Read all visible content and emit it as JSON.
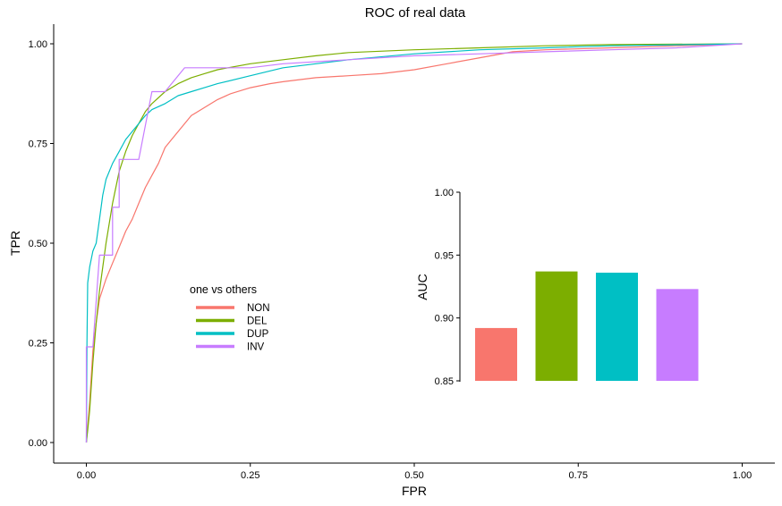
{
  "chart_data": [
    {
      "type": "line",
      "title": "ROC of real data",
      "xlabel": "FPR",
      "ylabel": "TPR",
      "xlim": [
        0,
        1
      ],
      "ylim": [
        0,
        1
      ],
      "xticks": [
        "0.00",
        "0.25",
        "0.50",
        "0.75",
        "1.00"
      ],
      "yticks": [
        "0.00",
        "0.25",
        "0.50",
        "0.75",
        "1.00"
      ],
      "grid": false,
      "legend": {
        "title": "one vs others",
        "placement": "center-left",
        "entries": [
          "NON",
          "DEL",
          "DUP",
          "INV"
        ]
      },
      "series": [
        {
          "name": "NON",
          "color": "#F8766D",
          "points": [
            [
              0,
              0
            ],
            [
              0.002,
              0.04
            ],
            [
              0.005,
              0.1
            ],
            [
              0.01,
              0.23
            ],
            [
              0.015,
              0.3
            ],
            [
              0.02,
              0.36
            ],
            [
              0.03,
              0.41
            ],
            [
              0.04,
              0.45
            ],
            [
              0.05,
              0.49
            ],
            [
              0.06,
              0.53
            ],
            [
              0.07,
              0.56
            ],
            [
              0.08,
              0.6
            ],
            [
              0.09,
              0.64
            ],
            [
              0.1,
              0.67
            ],
            [
              0.11,
              0.7
            ],
            [
              0.12,
              0.74
            ],
            [
              0.13,
              0.76
            ],
            [
              0.14,
              0.78
            ],
            [
              0.15,
              0.8
            ],
            [
              0.16,
              0.82
            ],
            [
              0.18,
              0.84
            ],
            [
              0.2,
              0.86
            ],
            [
              0.22,
              0.875
            ],
            [
              0.25,
              0.89
            ],
            [
              0.28,
              0.9
            ],
            [
              0.3,
              0.905
            ],
            [
              0.35,
              0.915
            ],
            [
              0.4,
              0.92
            ],
            [
              0.45,
              0.925
            ],
            [
              0.5,
              0.935
            ],
            [
              0.55,
              0.95
            ],
            [
              0.6,
              0.965
            ],
            [
              0.65,
              0.98
            ],
            [
              0.7,
              0.985
            ],
            [
              0.8,
              0.99
            ],
            [
              0.9,
              0.995
            ],
            [
              1,
              1
            ]
          ]
        },
        {
          "name": "DEL",
          "color": "#7CAE00",
          "points": [
            [
              0,
              0
            ],
            [
              0.002,
              0.03
            ],
            [
              0.005,
              0.08
            ],
            [
              0.01,
              0.2
            ],
            [
              0.015,
              0.3
            ],
            [
              0.02,
              0.38
            ],
            [
              0.03,
              0.5
            ],
            [
              0.04,
              0.6
            ],
            [
              0.05,
              0.68
            ],
            [
              0.06,
              0.73
            ],
            [
              0.07,
              0.77
            ],
            [
              0.08,
              0.8
            ],
            [
              0.09,
              0.83
            ],
            [
              0.1,
              0.85
            ],
            [
              0.12,
              0.88
            ],
            [
              0.14,
              0.9
            ],
            [
              0.16,
              0.915
            ],
            [
              0.18,
              0.925
            ],
            [
              0.2,
              0.935
            ],
            [
              0.25,
              0.95
            ],
            [
              0.3,
              0.96
            ],
            [
              0.35,
              0.97
            ],
            [
              0.4,
              0.978
            ],
            [
              0.5,
              0.985
            ],
            [
              0.6,
              0.99
            ],
            [
              0.7,
              0.995
            ],
            [
              0.8,
              0.998
            ],
            [
              1,
              1
            ]
          ]
        },
        {
          "name": "DUP",
          "color": "#00BFC4",
          "points": [
            [
              0,
              0
            ],
            [
              0.001,
              0.25
            ],
            [
              0.002,
              0.4
            ],
            [
              0.005,
              0.44
            ],
            [
              0.01,
              0.48
            ],
            [
              0.015,
              0.5
            ],
            [
              0.02,
              0.56
            ],
            [
              0.025,
              0.62
            ],
            [
              0.03,
              0.66
            ],
            [
              0.04,
              0.7
            ],
            [
              0.05,
              0.73
            ],
            [
              0.06,
              0.76
            ],
            [
              0.07,
              0.78
            ],
            [
              0.08,
              0.8
            ],
            [
              0.09,
              0.82
            ],
            [
              0.1,
              0.835
            ],
            [
              0.12,
              0.85
            ],
            [
              0.14,
              0.87
            ],
            [
              0.16,
              0.88
            ],
            [
              0.18,
              0.89
            ],
            [
              0.2,
              0.9
            ],
            [
              0.25,
              0.92
            ],
            [
              0.3,
              0.94
            ],
            [
              0.35,
              0.95
            ],
            [
              0.4,
              0.96
            ],
            [
              0.5,
              0.975
            ],
            [
              0.6,
              0.985
            ],
            [
              0.7,
              0.99
            ],
            [
              0.8,
              0.995
            ],
            [
              1,
              1
            ]
          ]
        },
        {
          "name": "INV",
          "color": "#C77CFF",
          "points": [
            [
              0,
              0
            ],
            [
              0,
              0.24
            ],
            [
              0.01,
              0.24
            ],
            [
              0.02,
              0.47
            ],
            [
              0.04,
              0.47
            ],
            [
              0.04,
              0.59
            ],
            [
              0.05,
              0.59
            ],
            [
              0.05,
              0.71
            ],
            [
              0.06,
              0.71
            ],
            [
              0.07,
              0.71
            ],
            [
              0.08,
              0.71
            ],
            [
              0.1,
              0.88
            ],
            [
              0.12,
              0.88
            ],
            [
              0.15,
              0.94
            ],
            [
              0.2,
              0.94
            ],
            [
              0.25,
              0.94
            ],
            [
              0.3,
              0.95
            ],
            [
              0.4,
              0.96
            ],
            [
              0.5,
              0.97
            ],
            [
              0.6,
              0.975
            ],
            [
              0.7,
              0.98
            ],
            [
              0.8,
              0.985
            ],
            [
              0.9,
              0.99
            ],
            [
              1,
              1
            ]
          ]
        }
      ]
    },
    {
      "type": "bar",
      "ylabel": "AUC",
      "ylim": [
        0.85,
        1.0
      ],
      "yticks": [
        "0.85",
        "0.90",
        "0.95",
        "1.00"
      ],
      "grid": false,
      "categories": [
        "NON",
        "DEL",
        "DUP",
        "INV"
      ],
      "values": [
        0.892,
        0.937,
        0.936,
        0.923
      ],
      "colors": [
        "#F8766D",
        "#7CAE00",
        "#00BFC4",
        "#C77CFF"
      ]
    }
  ]
}
